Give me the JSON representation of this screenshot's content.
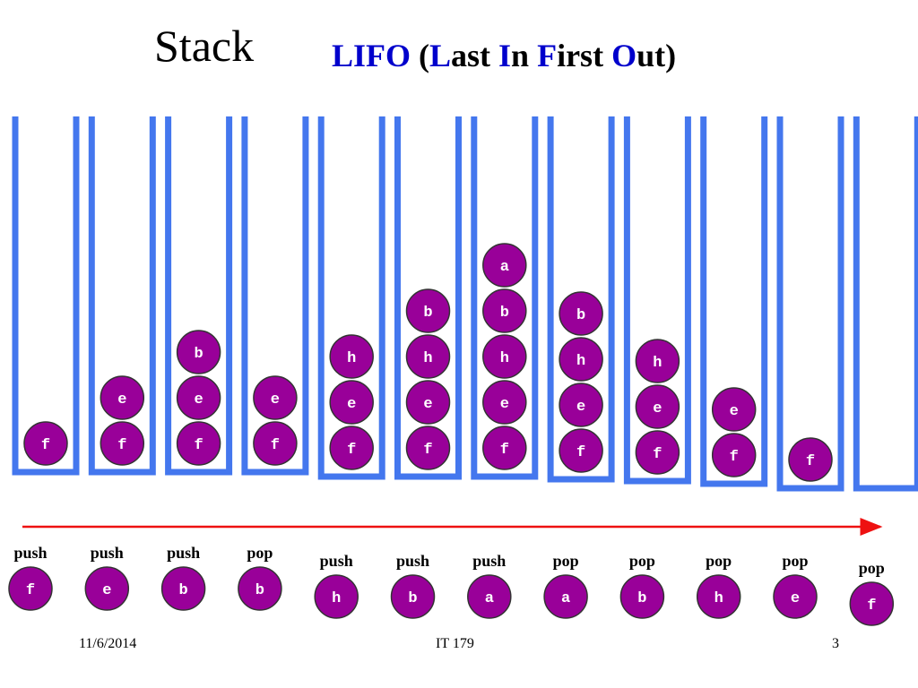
{
  "title": "Stack",
  "subtitle": {
    "p1": "LIFO",
    "p2": " (",
    "p3": "L",
    "p4": "ast ",
    "p5": "I",
    "p6": "n ",
    "p7": "F",
    "p8": "irst ",
    "p9": "O",
    "p10": "ut)"
  },
  "colors": {
    "stack_outline": "#4477ee",
    "ball_fill": "#990099",
    "ball_stroke": "#333333",
    "ball_text": "#ffffff",
    "arrow": "#ee1111",
    "subtitle_highlight": "#0000cc"
  },
  "stacks": [
    [
      "f"
    ],
    [
      "f",
      "e"
    ],
    [
      "f",
      "e",
      "b"
    ],
    [
      "f",
      "e"
    ],
    [
      "f",
      "e",
      "h"
    ],
    [
      "f",
      "e",
      "h",
      "b"
    ],
    [
      "f",
      "e",
      "h",
      "b",
      "a"
    ],
    [
      "f",
      "e",
      "h",
      "b"
    ],
    [
      "f",
      "e",
      "h"
    ],
    [
      "f",
      "e"
    ],
    [
      "f"
    ],
    []
  ],
  "operations": [
    {
      "op": "push",
      "item": "f"
    },
    {
      "op": "push",
      "item": "e"
    },
    {
      "op": "push",
      "item": "b"
    },
    {
      "op": "pop",
      "item": "b"
    },
    {
      "op": "push",
      "item": "h"
    },
    {
      "op": "push",
      "item": "b"
    },
    {
      "op": "push",
      "item": "a"
    },
    {
      "op": "pop",
      "item": "a"
    },
    {
      "op": "pop",
      "item": "b"
    },
    {
      "op": "pop",
      "item": "h"
    },
    {
      "op": "pop",
      "item": "e"
    },
    {
      "op": "pop",
      "item": "f"
    }
  ],
  "footer": {
    "date": "11/6/2014",
    "course": "IT 179",
    "page": "3"
  }
}
